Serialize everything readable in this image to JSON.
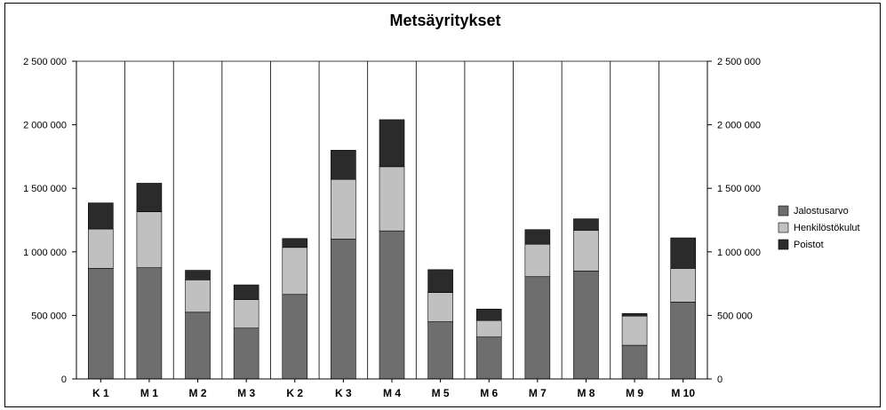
{
  "chart_data": {
    "type": "bar",
    "stacked": true,
    "title": "Metsäyritykset",
    "xlabel": "",
    "ylabel": "",
    "ylim": [
      0,
      2500000
    ],
    "y_ticks": [
      0,
      500000,
      1000000,
      1500000,
      2000000,
      2500000
    ],
    "y_tick_labels": [
      "0",
      "500 000",
      "1 000 000",
      "1 500 000",
      "2 000 000",
      "2 500 000"
    ],
    "secondary_axis": true,
    "grid": "vertical",
    "legend_position": "right",
    "categories": [
      "K 1",
      "M 1",
      "M 2",
      "M 3",
      "K 2",
      "K 3",
      "M  4",
      "M  5",
      "M 6",
      "M 7",
      "M  8",
      "M  9",
      "M 10"
    ],
    "series": [
      {
        "name": "Jalostusarvo",
        "color": "#6e6e6e",
        "values": [
          870000,
          875000,
          525000,
          400000,
          665000,
          1100000,
          1165000,
          450000,
          330000,
          805000,
          850000,
          265000,
          605000
        ]
      },
      {
        "name": "Henkilöstökulut",
        "color": "#c0c0c0",
        "values": [
          310000,
          440000,
          255000,
          225000,
          370000,
          470000,
          505000,
          230000,
          130000,
          255000,
          320000,
          230000,
          265000
        ]
      },
      {
        "name": "Poistot",
        "color": "#2b2b2b",
        "values": [
          205000,
          225000,
          75000,
          115000,
          70000,
          230000,
          370000,
          180000,
          90000,
          115000,
          90000,
          20000,
          240000
        ]
      }
    ]
  }
}
